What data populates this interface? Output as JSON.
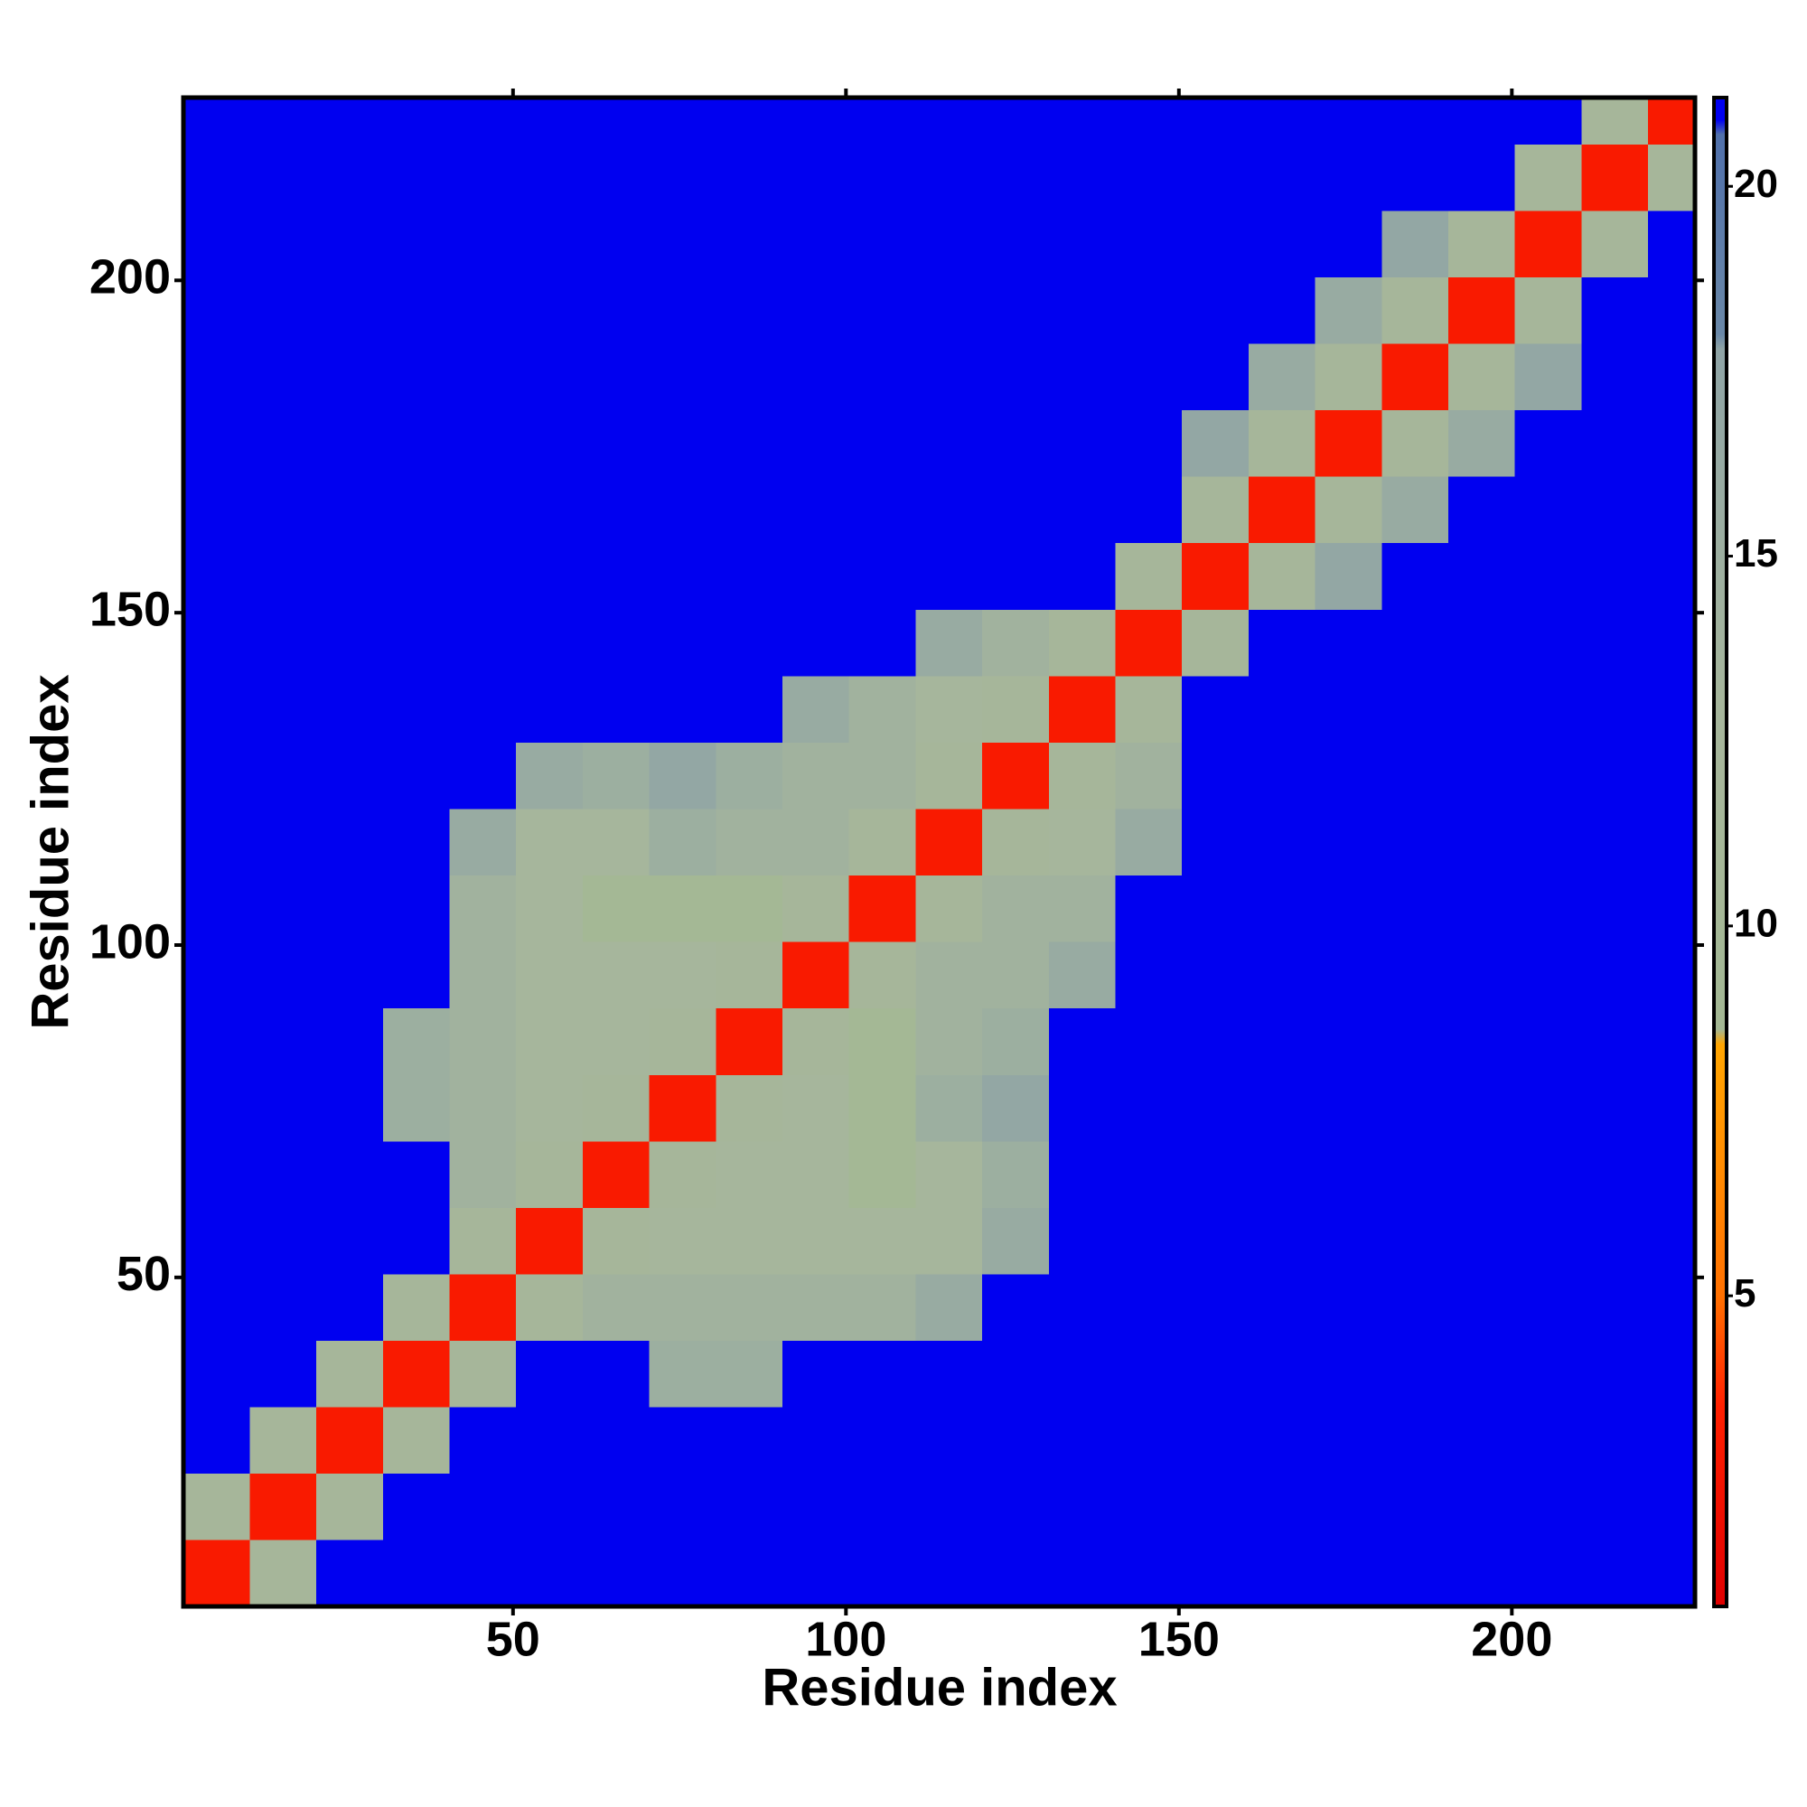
{
  "chart_data": {
    "type": "heatmap",
    "xlabel": "Residue index",
    "ylabel": "Residue index",
    "xbins": [
      0.5,
      10.5,
      20.5,
      30.5,
      40.5,
      50.5,
      60.5,
      70.5,
      80.5,
      90.5,
      100.5,
      110.5,
      120.5,
      130.5,
      140.5,
      150.5,
      160.5,
      170.5,
      180.5,
      190.5,
      200.5,
      210.5,
      220.5,
      227.5
    ],
    "ybins": [
      0.5,
      10.5,
      20.5,
      30.5,
      40.5,
      50.5,
      60.5,
      70.5,
      80.5,
      90.5,
      100.5,
      110.5,
      120.5,
      130.5,
      140.5,
      150.5,
      160.5,
      170.5,
      180.5,
      190.5,
      200.5,
      210.5,
      220.5,
      227.5
    ],
    "xlim": [
      0.5,
      227.5
    ],
    "ylim": [
      0.5,
      227.5
    ],
    "xticks": [
      50,
      100,
      150,
      200
    ],
    "yticks": [
      50,
      100,
      150,
      200
    ],
    "zlim": [
      0.8,
      21.2
    ],
    "zticks": [
      5,
      10,
      15,
      20
    ],
    "colorscale": [
      {
        "value": 0.8,
        "color": "#e00000"
      },
      {
        "value": 3.5,
        "color": "#ff2000"
      },
      {
        "value": 5,
        "color": "#ff7000"
      },
      {
        "value": 8.4,
        "color": "#ffa500"
      },
      {
        "value": 8.6,
        "color": "#a4b894"
      },
      {
        "value": 13,
        "color": "#a6b69c"
      },
      {
        "value": 17.8,
        "color": "#8fa4a6"
      },
      {
        "value": 18,
        "color": "#6a88a8"
      },
      {
        "value": 20.7,
        "color": "#5070aa"
      },
      {
        "value": 20.9,
        "color": "#0000f0"
      },
      {
        "value": 21.2,
        "color": "#0000f0"
      }
    ],
    "z": [
      [
        3,
        12,
        21,
        21,
        21,
        21,
        21,
        21,
        21,
        21,
        21,
        21,
        21,
        21,
        21,
        21,
        21,
        21,
        21,
        21,
        21,
        21,
        21
      ],
      [
        12,
        3,
        12,
        21,
        21,
        21,
        21,
        21,
        21,
        21,
        21,
        21,
        21,
        21,
        21,
        21,
        21,
        21,
        21,
        21,
        21,
        21,
        21
      ],
      [
        21,
        12,
        3,
        12,
        21,
        21,
        21,
        21,
        21,
        21,
        21,
        21,
        21,
        21,
        21,
        21,
        21,
        21,
        21,
        21,
        21,
        21,
        21
      ],
      [
        21,
        21,
        12,
        3,
        12,
        21,
        21,
        15,
        15,
        21,
        21,
        21,
        21,
        21,
        21,
        21,
        21,
        21,
        21,
        21,
        21,
        21,
        21
      ],
      [
        21,
        21,
        21,
        12,
        3,
        12,
        14,
        14,
        14,
        14,
        14,
        16,
        21,
        21,
        21,
        21,
        21,
        21,
        21,
        21,
        21,
        21,
        21
      ],
      [
        21,
        21,
        21,
        21,
        12,
        3,
        12,
        13,
        13,
        13,
        13,
        13,
        16,
        21,
        21,
        21,
        21,
        21,
        21,
        21,
        21,
        21,
        21
      ],
      [
        21,
        21,
        21,
        21,
        14,
        12,
        3,
        12,
        13,
        13,
        9,
        13,
        15,
        21,
        21,
        21,
        21,
        21,
        21,
        21,
        21,
        21,
        21
      ],
      [
        21,
        21,
        21,
        15,
        14,
        13,
        12,
        3,
        12,
        13,
        9,
        15,
        17,
        21,
        21,
        21,
        21,
        21,
        21,
        21,
        21,
        21,
        21
      ],
      [
        21,
        21,
        21,
        15,
        14,
        13,
        13,
        12,
        3,
        12,
        9,
        14,
        15,
        21,
        21,
        21,
        21,
        21,
        21,
        21,
        21,
        21,
        21
      ],
      [
        21,
        21,
        21,
        21,
        14,
        13,
        13,
        13,
        12,
        3,
        12,
        14,
        14,
        16,
        21,
        21,
        21,
        21,
        21,
        21,
        21,
        21,
        21
      ],
      [
        21,
        21,
        21,
        21,
        14,
        13,
        9,
        9,
        9,
        12,
        3,
        12,
        14,
        14,
        21,
        21,
        21,
        21,
        21,
        21,
        21,
        21,
        21
      ],
      [
        21,
        21,
        21,
        21,
        16,
        13,
        13,
        15,
        14,
        14,
        12,
        3,
        12,
        13,
        16,
        21,
        21,
        21,
        21,
        21,
        21,
        21,
        21
      ],
      [
        21,
        21,
        21,
        21,
        21,
        16,
        15,
        17,
        15,
        14,
        14,
        12,
        3,
        12,
        14,
        21,
        21,
        21,
        21,
        21,
        21,
        21,
        21
      ],
      [
        21,
        21,
        21,
        21,
        21,
        21,
        21,
        21,
        21,
        16,
        14,
        13,
        12,
        3,
        12,
        21,
        21,
        21,
        21,
        21,
        21,
        21,
        21
      ],
      [
        21,
        21,
        21,
        21,
        21,
        21,
        21,
        21,
        21,
        21,
        21,
        16,
        14,
        12,
        3,
        12,
        21,
        21,
        21,
        21,
        21,
        21,
        21
      ],
      [
        21,
        21,
        21,
        21,
        21,
        21,
        21,
        21,
        21,
        21,
        21,
        21,
        21,
        21,
        12,
        3,
        12,
        17,
        21,
        21,
        21,
        21,
        21
      ],
      [
        21,
        21,
        21,
        21,
        21,
        21,
        21,
        21,
        21,
        21,
        21,
        21,
        21,
        21,
        21,
        12,
        3,
        12,
        16,
        21,
        21,
        21,
        21
      ],
      [
        21,
        21,
        21,
        21,
        21,
        21,
        21,
        21,
        21,
        21,
        21,
        21,
        21,
        21,
        21,
        17,
        12,
        3,
        12,
        16,
        21,
        21,
        21
      ],
      [
        21,
        21,
        21,
        21,
        21,
        21,
        21,
        21,
        21,
        21,
        21,
        21,
        21,
        21,
        21,
        21,
        16,
        12,
        3,
        12,
        17,
        21,
        21
      ],
      [
        21,
        21,
        21,
        21,
        21,
        21,
        21,
        21,
        21,
        21,
        21,
        21,
        21,
        21,
        21,
        21,
        21,
        16,
        12,
        3,
        12,
        21,
        21
      ],
      [
        21,
        21,
        21,
        21,
        21,
        21,
        21,
        21,
        21,
        21,
        21,
        21,
        21,
        21,
        21,
        21,
        21,
        21,
        17,
        12,
        3,
        12,
        21
      ],
      [
        21,
        21,
        21,
        21,
        21,
        21,
        21,
        21,
        21,
        21,
        21,
        21,
        21,
        21,
        21,
        21,
        21,
        21,
        21,
        21,
        12,
        3,
        12
      ],
      [
        21,
        21,
        21,
        21,
        21,
        21,
        21,
        21,
        21,
        21,
        21,
        21,
        21,
        21,
        21,
        21,
        21,
        21,
        21,
        21,
        21,
        12,
        3
      ]
    ]
  }
}
